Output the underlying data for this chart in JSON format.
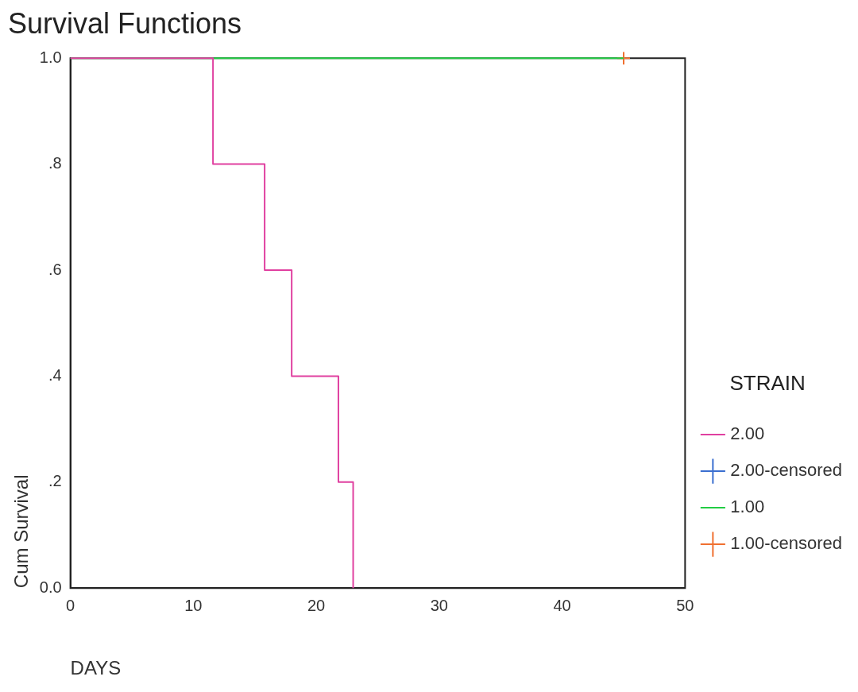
{
  "chart_data": {
    "type": "step",
    "title": "Survival Functions",
    "xlabel": "DAYS",
    "ylabel": "Cum Survival",
    "legend_title": "STRAIN",
    "xlim": [
      0,
      50
    ],
    "xticks": [
      0,
      10,
      20,
      30,
      40,
      50
    ],
    "ylim": [
      0,
      1
    ],
    "yticks": [
      {
        "value": 0,
        "label": "0.0"
      },
      {
        "value": 0.2,
        "label": ".2"
      },
      {
        "value": 0.4,
        "label": ".4"
      },
      {
        "value": 0.6,
        "label": ".6"
      },
      {
        "value": 0.8,
        "label": ".8"
      },
      {
        "value": 1,
        "label": "1.0"
      }
    ],
    "grid": false,
    "legend": "right",
    "series": [
      {
        "name": "2.00",
        "color": "#e040a0",
        "x": [
          0,
          11.6,
          15.8,
          18,
          21.8,
          23
        ],
        "values": [
          1,
          0.8,
          0.6,
          0.4,
          0.2,
          0
        ]
      },
      {
        "name": "2.00-censored",
        "type": "scatter",
        "marker": "cross",
        "color": "#3a6fd0"
      },
      {
        "name": "1.00",
        "color": "#22cc44",
        "x": [
          0,
          45
        ],
        "values": [
          1,
          1
        ]
      },
      {
        "name": "1.00-censored",
        "type": "scatter",
        "marker": "cross",
        "color": "#f07030",
        "x": [
          45
        ],
        "values": [
          1
        ]
      }
    ]
  }
}
